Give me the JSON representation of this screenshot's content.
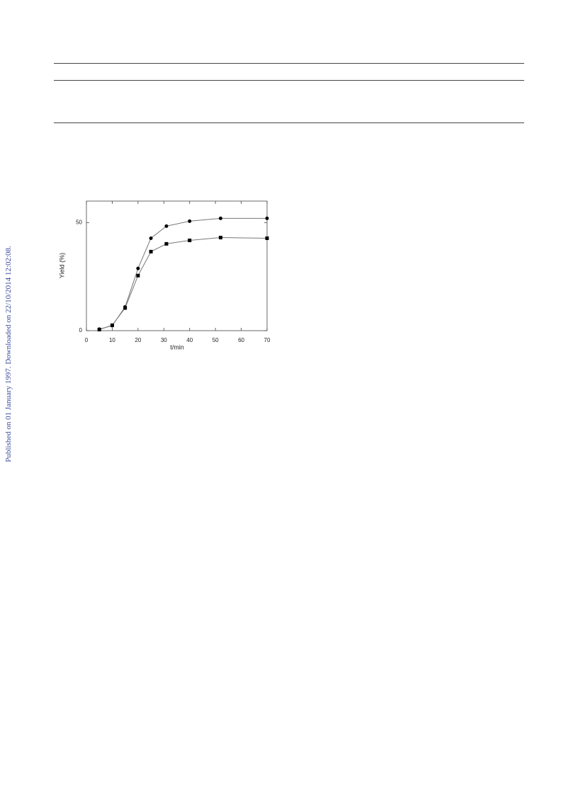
{
  "side_note": "Published on 01 January 1997. Downloaded on 22/10/2014 12:02:08.",
  "chart_data": {
    "type": "line",
    "x_label": "t/min",
    "y_label": "Yield (%)",
    "xlim": [
      0,
      70
    ],
    "ylim": [
      0,
      60
    ],
    "xticks": [
      0,
      10,
      20,
      30,
      40,
      50,
      60,
      70
    ],
    "yticks": [
      0,
      50
    ],
    "line_color": "#777",
    "series": [
      {
        "color": "#000",
        "marker": "circle",
        "x": [
          5,
          10,
          15,
          20,
          25,
          31,
          40,
          52,
          70
        ],
        "values": [
          0.7,
          2.3,
          11,
          28.8,
          42.8,
          48.4,
          50.7,
          52,
          52
        ]
      },
      {
        "color": "#000",
        "marker": "square",
        "x": [
          5,
          10,
          15,
          20,
          25,
          31,
          40,
          52,
          70
        ],
        "values": [
          0.5,
          2.5,
          10.5,
          25.5,
          36.6,
          40.2,
          41.8,
          43.1,
          42.8
        ]
      }
    ]
  }
}
